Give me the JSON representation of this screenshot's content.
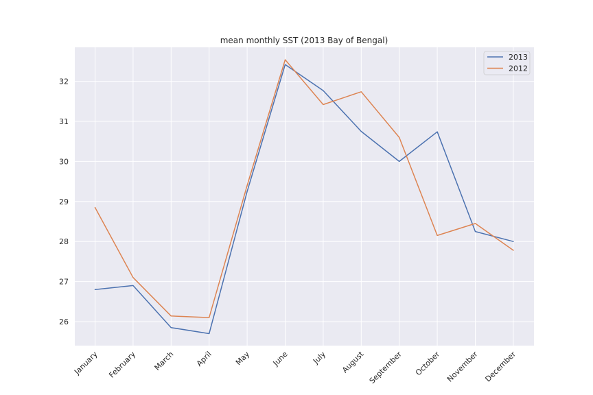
{
  "chart_data": {
    "type": "line",
    "title": "mean monthly SST (2013 Bay of Bengal)",
    "xlabel": "",
    "ylabel": "",
    "categories": [
      "January",
      "February",
      "March",
      "April",
      "May",
      "June",
      "July",
      "August",
      "September",
      "October",
      "November",
      "December"
    ],
    "series": [
      {
        "name": "2013",
        "color": "#4c72b0",
        "values": [
          26.8,
          26.9,
          25.85,
          25.7,
          29.25,
          32.42,
          31.77,
          30.75,
          30.0,
          30.74,
          28.25,
          28.0
        ]
      },
      {
        "name": "2012",
        "color": "#dd8452",
        "values": [
          28.85,
          27.1,
          26.14,
          26.1,
          29.4,
          32.54,
          31.42,
          31.74,
          30.6,
          28.15,
          28.45,
          27.78
        ]
      }
    ],
    "ylim": [
      25.4,
      32.85
    ],
    "yticks": [
      26,
      27,
      28,
      29,
      30,
      31,
      32
    ],
    "grid": true,
    "legend": "top-right",
    "background": "#eaeaf2",
    "grid_color": "#ffffff"
  }
}
